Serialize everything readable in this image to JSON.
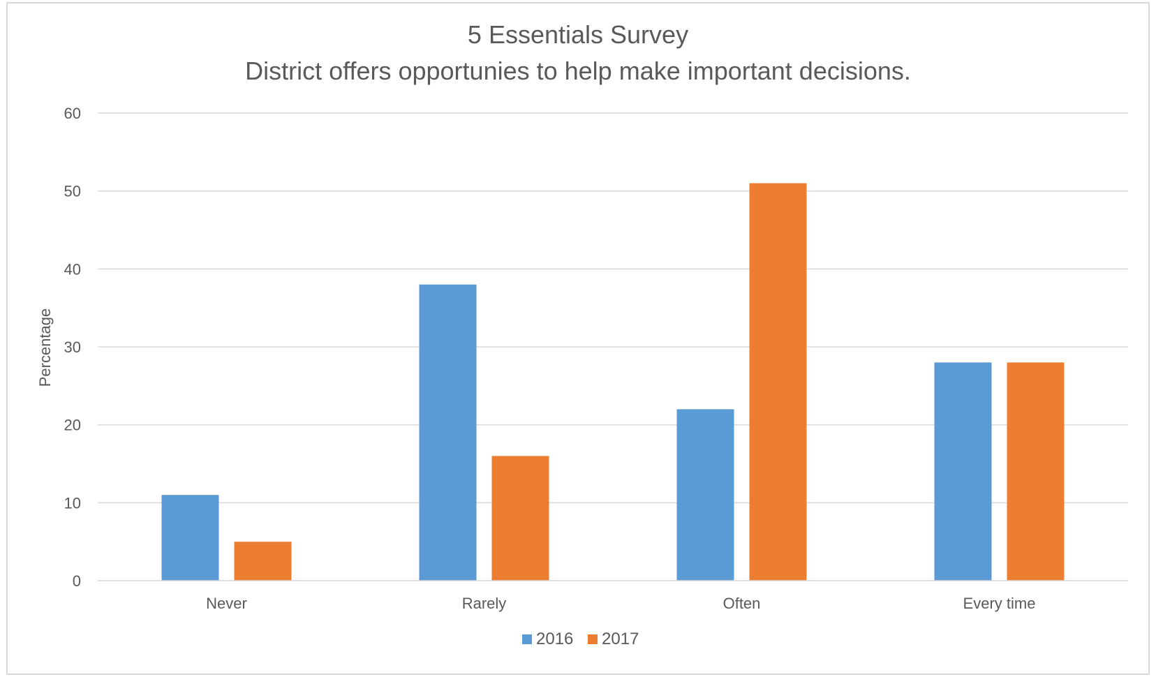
{
  "chart_data": {
    "type": "bar",
    "title": "5 Essentials Survey",
    "subtitle": "District offers opportunies to help make important decisions.",
    "xlabel": "",
    "ylabel": "Percentage",
    "ylim": [
      0,
      60
    ],
    "yticks": [
      0,
      10,
      20,
      30,
      40,
      50,
      60
    ],
    "grid": true,
    "legend_position": "bottom",
    "categories": [
      "Never",
      "Rarely",
      "Often",
      "Every time"
    ],
    "series": [
      {
        "name": "2016",
        "color": "#5b9bd5",
        "values": [
          11,
          38,
          22,
          28
        ]
      },
      {
        "name": "2017",
        "color": "#ed7d31",
        "values": [
          5,
          16,
          51,
          28
        ]
      }
    ]
  }
}
